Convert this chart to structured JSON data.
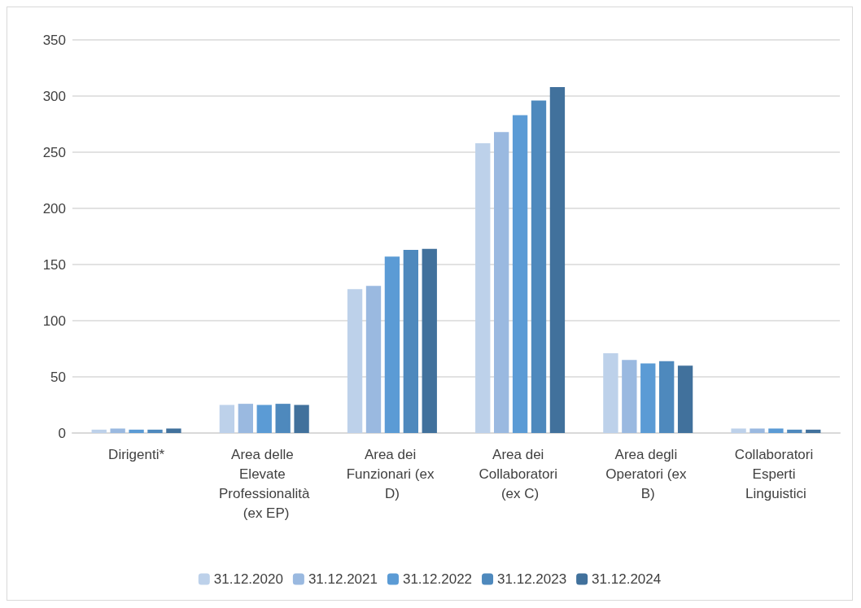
{
  "chart_data": {
    "type": "bar",
    "categories": [
      "Dirigenti*",
      "Area delle Elevate Professionalità (ex EP)",
      "Area dei Funzionari (ex D)",
      "Area dei Collaboratori (ex C)",
      "Area degli Operatori (ex B)",
      "Collaboratori Esperti Linguistici"
    ],
    "series": [
      {
        "name": "31.12.2020",
        "color": "#bdd1ea",
        "values": [
          3,
          25,
          128,
          258,
          71,
          4
        ]
      },
      {
        "name": "31.12.2021",
        "color": "#9ab9e0",
        "values": [
          4,
          26,
          131,
          268,
          65,
          4
        ]
      },
      {
        "name": "31.12.2022",
        "color": "#5b9bd5",
        "values": [
          3,
          25,
          157,
          283,
          62,
          4
        ]
      },
      {
        "name": "31.12.2023",
        "color": "#4e89bd",
        "values": [
          3,
          26,
          163,
          296,
          64,
          3
        ]
      },
      {
        "name": "31.12.2024",
        "color": "#41719c",
        "values": [
          4,
          25,
          164,
          308,
          60,
          3
        ]
      }
    ],
    "ylim": [
      0,
      350
    ],
    "yticks": [
      0,
      50,
      100,
      150,
      200,
      250,
      300,
      350
    ],
    "grid": "y",
    "legend": "bottom"
  }
}
